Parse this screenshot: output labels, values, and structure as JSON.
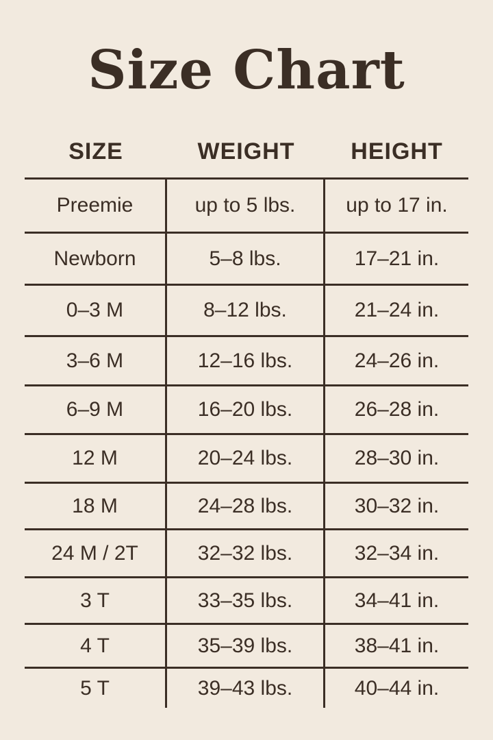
{
  "title": "Size Chart",
  "headers": [
    "SIZE",
    "WEIGHT",
    "HEIGHT"
  ],
  "rows": [
    [
      "Preemie",
      "up to 5 lbs.",
      "up to 17 in."
    ],
    [
      "Newborn",
      "5–8 lbs.",
      "17–21 in."
    ],
    [
      "0–3 M",
      "8–12 lbs.",
      "21–24 in."
    ],
    [
      "3–6 M",
      "12–16 lbs.",
      "24–26 in."
    ],
    [
      "6–9 M",
      "16–20 lbs.",
      "26–28 in."
    ],
    [
      "12 M",
      "20–24 lbs.",
      "28–30 in."
    ],
    [
      "18 M",
      "24–28 lbs.",
      "30–32 in."
    ],
    [
      "24 M / 2T",
      "32–32 lbs.",
      "32–34 in."
    ],
    [
      "3 T",
      "33–35 lbs.",
      "34–41 in."
    ],
    [
      "4 T",
      "35–39 lbs.",
      "38–41 in."
    ],
    [
      "5 T",
      "39–43 lbs.",
      "40–44 in."
    ]
  ],
  "colors": {
    "background": "#f2eadf",
    "text": "#3b2e25"
  }
}
